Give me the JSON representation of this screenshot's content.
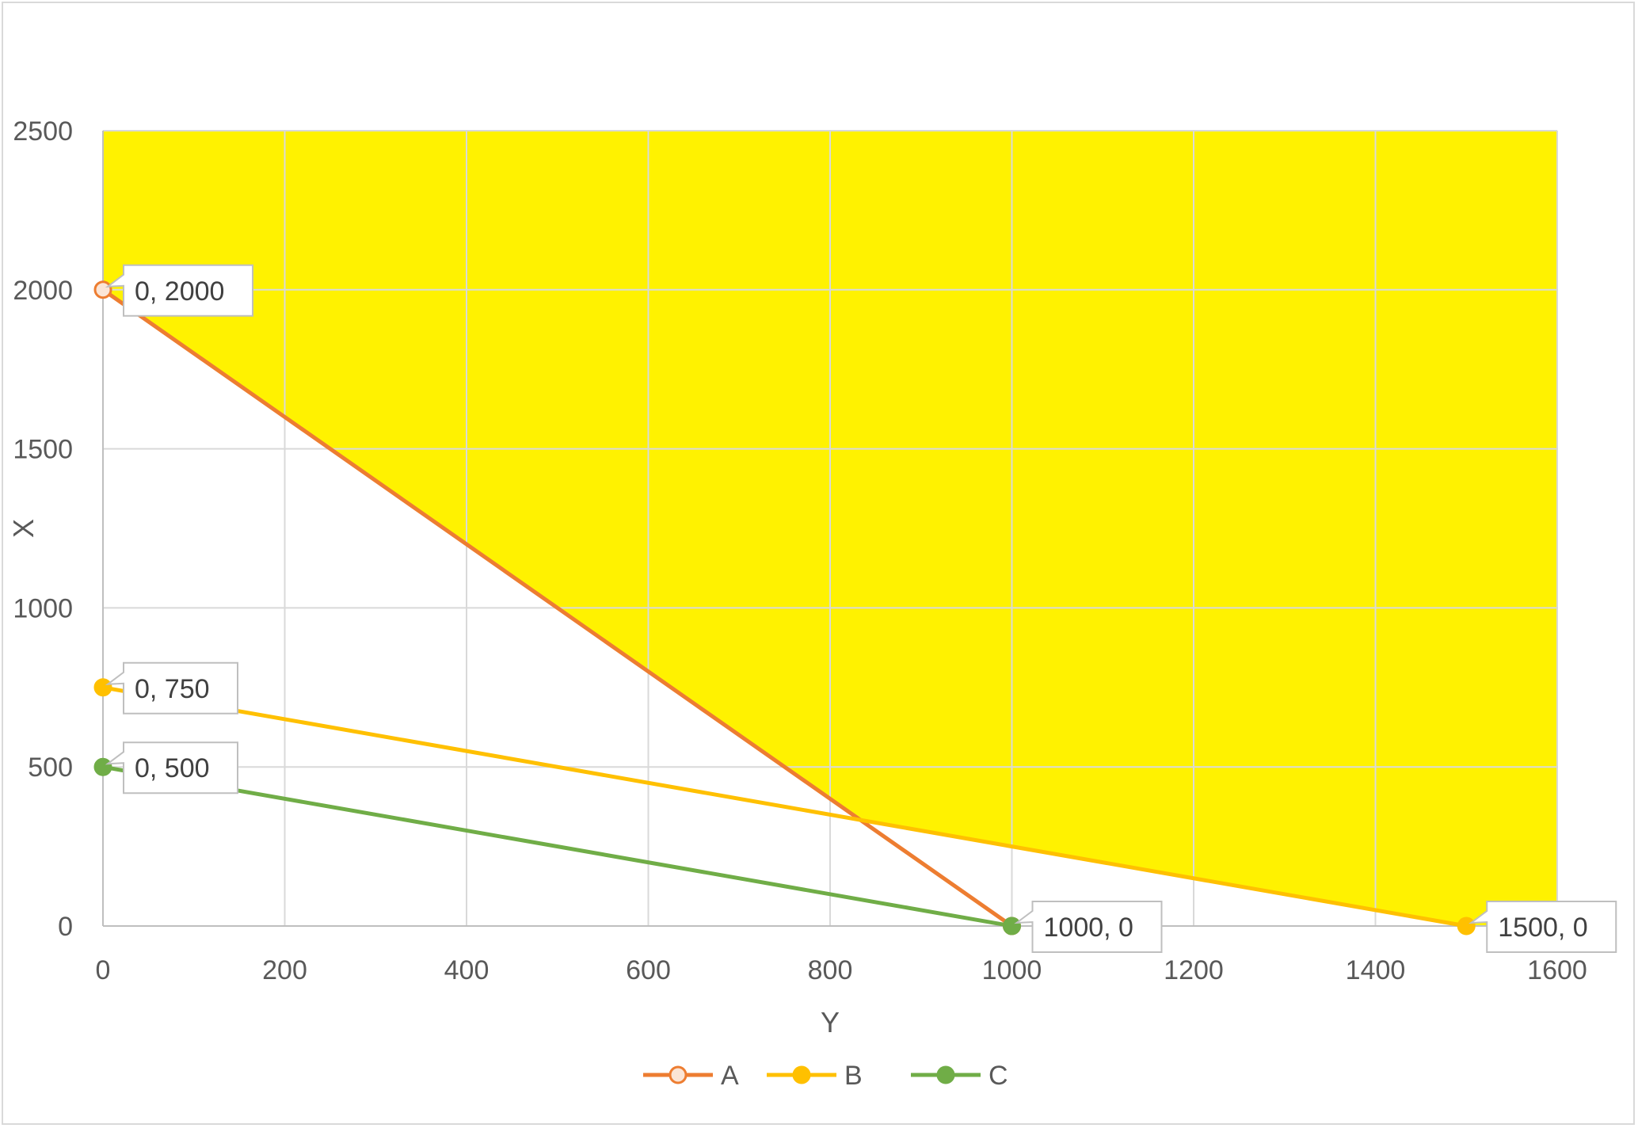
{
  "chart_data": {
    "type": "line",
    "title": "",
    "xlabel": "Y",
    "ylabel": "X",
    "xlim": [
      0,
      1600
    ],
    "ylim": [
      0,
      2500
    ],
    "xticks": [
      "0",
      "200",
      "400",
      "600",
      "800",
      "1000",
      "1200",
      "1400",
      "1600"
    ],
    "yticks": [
      "0",
      "500",
      "1000",
      "1500",
      "2000",
      "2500"
    ],
    "grid": true,
    "legend_position": "bottom",
    "shaded_region": {
      "description_color": "#FFF200",
      "polygon": [
        [
          0,
          2500
        ],
        [
          0,
          2000
        ],
        [
          833.3,
          333.3
        ],
        [
          1500,
          0
        ],
        [
          1600,
          0
        ],
        [
          1600,
          2500
        ]
      ]
    },
    "series": [
      {
        "name": "A",
        "color": "#ED7D31",
        "marker_fill": "#FBE5D6",
        "x": [
          0,
          1000
        ],
        "y": [
          2000,
          0
        ]
      },
      {
        "name": "B",
        "color": "#FFC000",
        "marker_fill": "#FFC000",
        "x": [
          0,
          1500
        ],
        "y": [
          750,
          0
        ]
      },
      {
        "name": "C",
        "color": "#70AD47",
        "marker_fill": "#70AD47",
        "x": [
          0,
          1000
        ],
        "y": [
          500,
          0
        ]
      }
    ],
    "data_labels": [
      {
        "text": "0, 2000",
        "x": 0,
        "y": 2000
      },
      {
        "text": "0, 750",
        "x": 0,
        "y": 750
      },
      {
        "text": "0, 500",
        "x": 0,
        "y": 500
      },
      {
        "text": "1000, 0",
        "x": 1000,
        "y": 0
      },
      {
        "text": "1500, 0",
        "x": 1500,
        "y": 0
      }
    ]
  }
}
